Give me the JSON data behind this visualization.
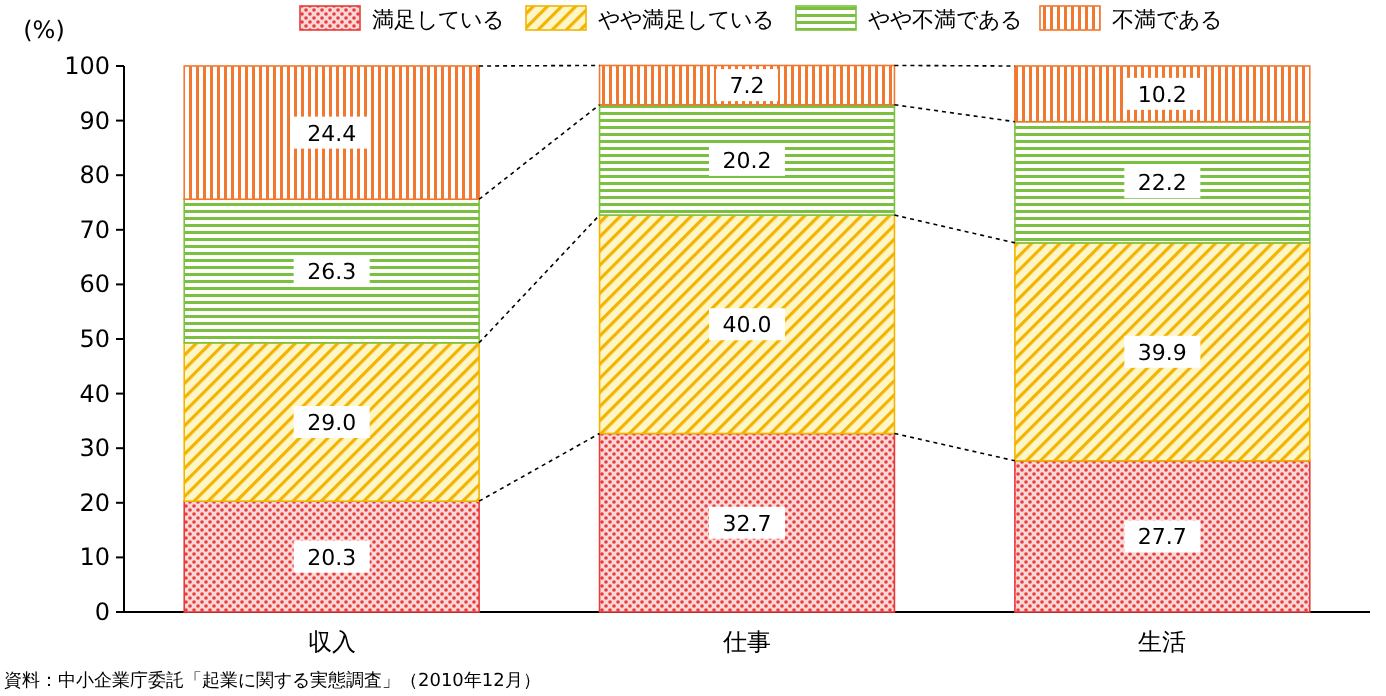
{
  "chart_data": {
    "type": "bar",
    "stacked": true,
    "ylabel": "(%)",
    "categories": [
      "収入",
      "仕事",
      "生活"
    ],
    "series": [
      {
        "name": "満足している",
        "color": "#e83c3c",
        "values": [
          20.3,
          32.7,
          27.7
        ],
        "value_labels": [
          "20.3",
          "32.7",
          "27.7"
        ]
      },
      {
        "name": "やや満足している",
        "color": "#f2b400",
        "values": [
          29.0,
          40.0,
          39.9
        ],
        "value_labels": [
          "29.0",
          "40.0",
          "39.9"
        ]
      },
      {
        "name": "やや不満である",
        "color": "#7cc040",
        "values": [
          26.3,
          20.2,
          22.2
        ],
        "value_labels": [
          "26.3",
          "20.2",
          "22.2"
        ]
      },
      {
        "name": "不満である",
        "color": "#f07830",
        "values": [
          24.4,
          7.2,
          10.2
        ],
        "value_labels": [
          "24.4",
          "7.2",
          "10.2"
        ]
      }
    ],
    "ylim": [
      0,
      100
    ],
    "yticks": [
      0,
      10,
      20,
      30,
      40,
      50,
      60,
      70,
      80,
      90,
      100
    ],
    "grid": false,
    "legend": "top",
    "annotations": [
      "資料：中小企業庁委託「起業に関する実態調査」（2010年12月）"
    ]
  }
}
